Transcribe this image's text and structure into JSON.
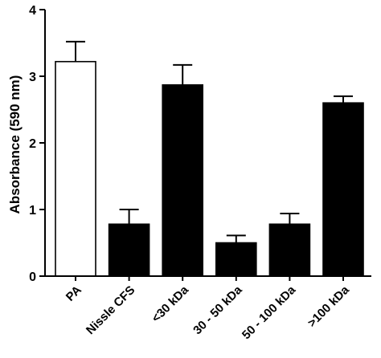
{
  "chart_data": {
    "type": "bar",
    "title": "",
    "xlabel": "",
    "ylabel": "Absorbance (590 nm)",
    "ylim": [
      0,
      4
    ],
    "yticks": [
      0,
      1,
      2,
      3,
      4
    ],
    "grid": false,
    "categories": [
      "PA",
      "Nissle CFS",
      "<30 kDa",
      "30 - 50 kDa",
      "50 - 100 kDa",
      ">100 kDa"
    ],
    "values": [
      3.22,
      0.78,
      2.87,
      0.5,
      0.78,
      2.6
    ],
    "errors": [
      0.3,
      0.22,
      0.3,
      0.11,
      0.16,
      0.1
    ],
    "bar_colors": [
      "#ffffff",
      "#000000",
      "#000000",
      "#000000",
      "#000000",
      "#000000"
    ]
  }
}
